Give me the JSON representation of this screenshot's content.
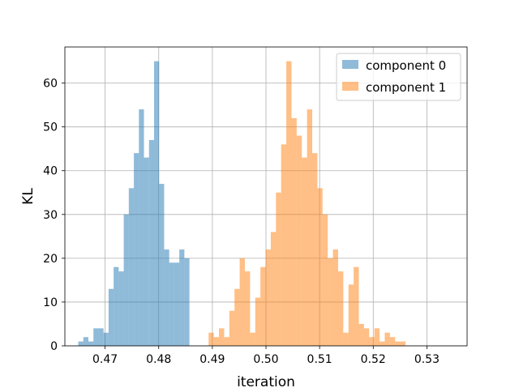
{
  "chart_data": {
    "type": "histogram",
    "xlabel": "iteration",
    "ylabel": "KL",
    "xlim": [
      0.4625,
      0.5375
    ],
    "ylim": [
      0,
      68.25
    ],
    "xticks": [
      0.47,
      0.48,
      0.49,
      0.5,
      0.51,
      0.52,
      0.53
    ],
    "xtick_labels": [
      "0.47",
      "0.48",
      "0.49",
      "0.50",
      "0.51",
      "0.52",
      "0.53"
    ],
    "yticks": [
      0,
      10,
      20,
      30,
      40,
      50,
      60
    ],
    "ytick_labels": [
      "0",
      "10",
      "20",
      "30",
      "40",
      "50",
      "60"
    ],
    "grid": true,
    "legend_position": "top-right",
    "series": [
      {
        "name": "component 0",
        "color": "#1f77b4",
        "opacity": 0.5,
        "bin_start": 0.465,
        "bin_width": 0.000942,
        "counts": [
          1,
          2,
          1,
          4,
          4,
          3,
          13,
          18,
          17,
          30,
          36,
          44,
          54,
          43,
          47,
          65,
          37,
          22,
          19,
          19,
          22,
          20
        ]
      },
      {
        "name": "component 1",
        "color": "#ff7f0e",
        "opacity": 0.5,
        "bin_start": 0.4893,
        "bin_width": 0.000966,
        "counts": [
          3,
          2,
          4,
          2,
          8,
          13,
          20,
          17,
          3,
          11,
          18,
          22,
          26,
          35,
          46,
          65,
          52,
          48,
          43,
          54,
          44,
          36,
          30,
          20,
          22,
          17,
          3,
          14,
          18,
          5,
          4,
          2,
          4,
          1,
          3,
          2,
          1,
          1
        ]
      }
    ]
  }
}
